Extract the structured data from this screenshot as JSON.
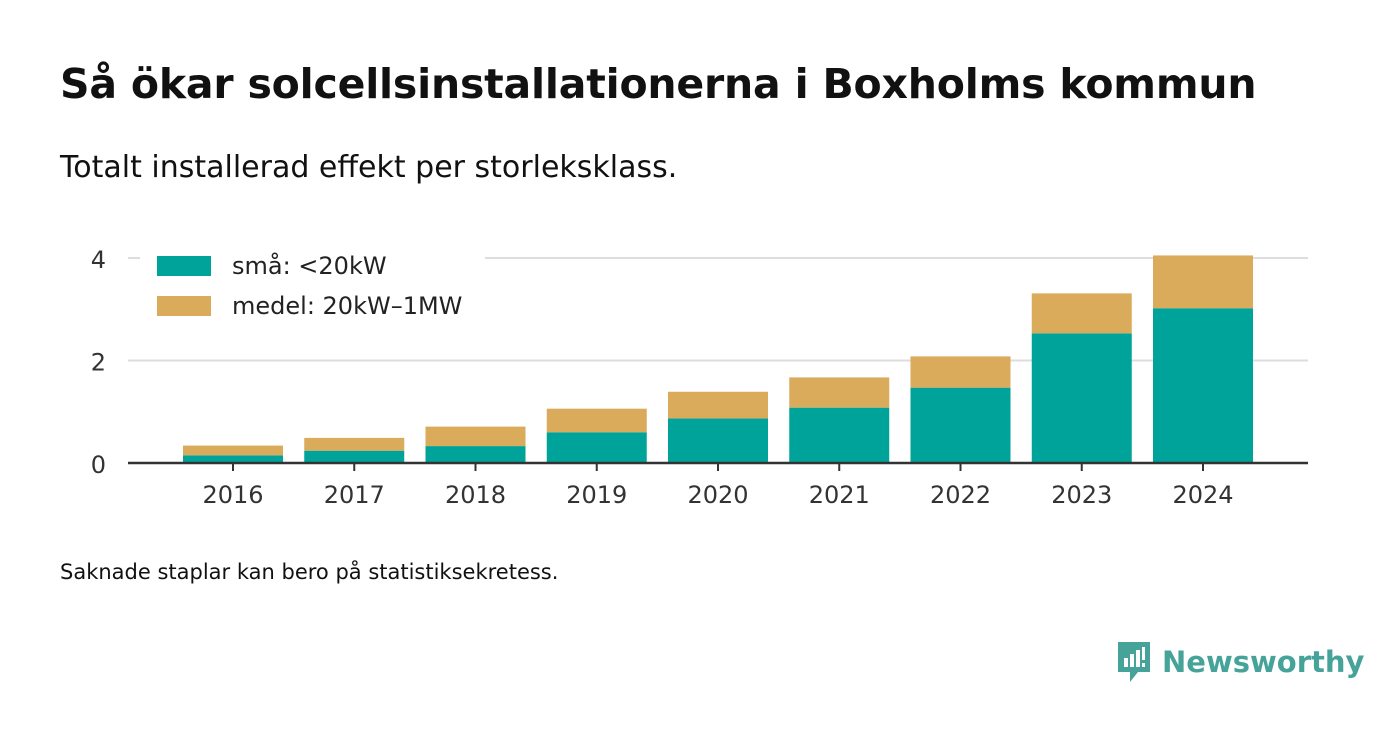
{
  "title": "Så ökar solcellsinstallationerna i Boxholms kommun",
  "subtitle": "Totalt installerad effekt per storleksklass.",
  "footnote": "Saknade staplar kan bero på statistiksekretess.",
  "brand": {
    "name": "Newsworthy",
    "icon": "newsworthy-logo-icon",
    "color": "#45a39a"
  },
  "chart_data": {
    "type": "bar",
    "stacked": true,
    "categories": [
      "2016",
      "2017",
      "2018",
      "2019",
      "2020",
      "2021",
      "2022",
      "2023",
      "2024"
    ],
    "series": [
      {
        "name": "små: <20kW",
        "color": "#00a39a",
        "values": [
          0.15,
          0.24,
          0.33,
          0.6,
          0.87,
          1.08,
          1.47,
          2.53,
          3.02
        ]
      },
      {
        "name": "medel: 20kW–1MW",
        "color": "#d9ab5b",
        "values": [
          0.19,
          0.25,
          0.38,
          0.46,
          0.52,
          0.59,
          0.61,
          0.78,
          1.03
        ]
      }
    ],
    "yticks": [
      0,
      2,
      4
    ],
    "ylim": [
      0,
      4.2
    ],
    "grid": true,
    "legend": "top-left"
  }
}
